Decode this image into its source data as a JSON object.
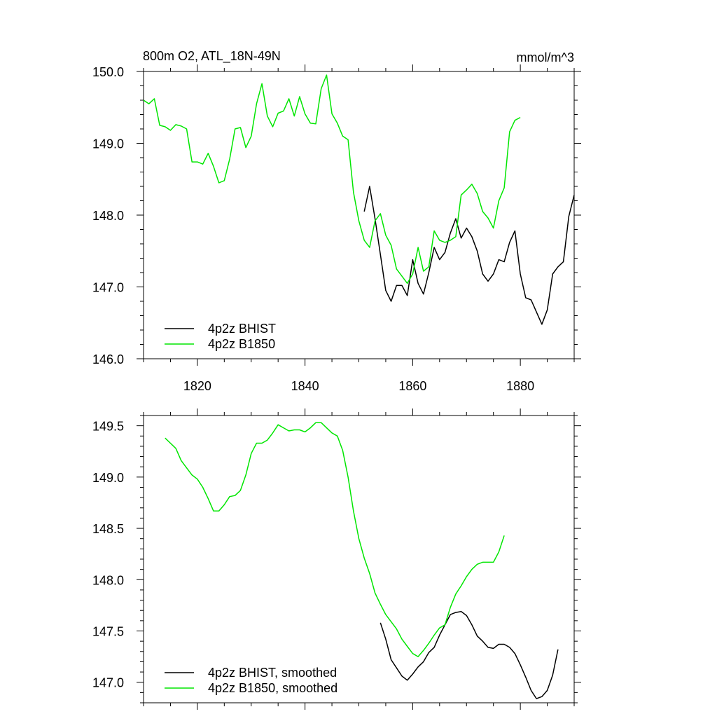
{
  "chart_data": [
    {
      "type": "line",
      "title": "800m O2, ATL_18N-49N",
      "units_label": "mmol/m^3",
      "xlim": [
        1810,
        1890
      ],
      "ylim": [
        146.0,
        150.0
      ],
      "x_ticks": [
        1820,
        1840,
        1860,
        1880
      ],
      "x_tick_labels": [
        "1820",
        "1840",
        "1860",
        "1880"
      ],
      "y_ticks": [
        146.0,
        147.0,
        148.0,
        149.0,
        150.0
      ],
      "y_tick_labels": [
        "146.0",
        "147.0",
        "148.0",
        "149.0",
        "150.0"
      ],
      "legend_position": "bottom-left",
      "series": [
        {
          "name": "4p2z BHIST",
          "color": "#000000",
          "x": [
            1851,
            1852,
            1853,
            1854,
            1855,
            1856,
            1857,
            1858,
            1859,
            1860,
            1861,
            1862,
            1863,
            1864,
            1865,
            1866,
            1867,
            1868,
            1869,
            1870,
            1871,
            1872,
            1873,
            1874,
            1875,
            1876,
            1877,
            1878,
            1879,
            1880,
            1881,
            1882,
            1883,
            1884,
            1885,
            1886,
            1887,
            1888,
            1889,
            1890
          ],
          "y": [
            148.05,
            148.4,
            147.95,
            147.45,
            146.95,
            146.8,
            147.02,
            147.02,
            146.88,
            147.38,
            147.05,
            146.9,
            147.2,
            147.55,
            147.38,
            147.48,
            147.75,
            147.95,
            147.68,
            147.82,
            147.7,
            147.5,
            147.18,
            147.08,
            147.18,
            147.38,
            147.35,
            147.62,
            147.78,
            147.18,
            146.85,
            146.82,
            146.65,
            146.48,
            146.68,
            147.18,
            147.28,
            147.35,
            147.98,
            148.28
          ]
        },
        {
          "name": "4p2z B1850",
          "color": "#00e600",
          "x": [
            1810,
            1811,
            1812,
            1813,
            1814,
            1815,
            1816,
            1817,
            1818,
            1819,
            1820,
            1821,
            1822,
            1823,
            1824,
            1825,
            1826,
            1827,
            1828,
            1829,
            1830,
            1831,
            1832,
            1833,
            1834,
            1835,
            1836,
            1837,
            1838,
            1839,
            1840,
            1841,
            1842,
            1843,
            1844,
            1845,
            1846,
            1847,
            1848,
            1849,
            1850,
            1851,
            1852,
            1853,
            1854,
            1855,
            1856,
            1857,
            1858,
            1859,
            1860,
            1861,
            1862,
            1863,
            1864,
            1865,
            1866,
            1867,
            1868,
            1869,
            1870,
            1871,
            1872,
            1873,
            1874,
            1875,
            1876,
            1877,
            1878,
            1879,
            1880
          ],
          "y": [
            149.6,
            149.55,
            149.62,
            149.25,
            149.23,
            149.18,
            149.26,
            149.24,
            149.2,
            148.74,
            148.74,
            148.71,
            148.86,
            148.68,
            148.45,
            148.48,
            148.78,
            149.2,
            149.22,
            148.94,
            149.1,
            149.55,
            149.83,
            149.38,
            149.23,
            149.42,
            149.45,
            149.62,
            149.38,
            149.65,
            149.41,
            149.28,
            149.27,
            149.76,
            149.95,
            149.41,
            149.28,
            149.1,
            149.05,
            148.32,
            147.92,
            147.65,
            147.55,
            147.92,
            148.02,
            147.72,
            147.58,
            147.25,
            147.15,
            147.05,
            147.18,
            147.55,
            147.22,
            147.28,
            147.78,
            147.65,
            147.62,
            147.65,
            147.7,
            148.28,
            148.35,
            148.43,
            148.3,
            148.05,
            147.96,
            147.82,
            148.2,
            148.38,
            149.16,
            149.32,
            149.36
          ]
        }
      ]
    },
    {
      "type": "line",
      "title": "",
      "xlim": [
        1810,
        1890
      ],
      "ylim": [
        146.8,
        149.6
      ],
      "x_ticks": [
        1820,
        1840,
        1860,
        1880
      ],
      "y_ticks": [
        147.0,
        147.5,
        148.0,
        148.5,
        149.0,
        149.5
      ],
      "y_tick_labels": [
        "147.0",
        "147.5",
        "148.0",
        "148.5",
        "149.0",
        "149.5"
      ],
      "legend_position": "bottom-left",
      "series": [
        {
          "name": "4p2z BHIST, smoothed",
          "color": "#000000",
          "x": [
            1854,
            1855,
            1856,
            1857,
            1858,
            1859,
            1860,
            1861,
            1862,
            1863,
            1864,
            1865,
            1866,
            1867,
            1868,
            1869,
            1870,
            1871,
            1872,
            1873,
            1874,
            1875,
            1876,
            1877,
            1878,
            1879,
            1880,
            1881,
            1882,
            1883,
            1884,
            1885,
            1886,
            1887
          ],
          "y": [
            147.58,
            147.42,
            147.22,
            147.14,
            147.06,
            147.02,
            147.08,
            147.15,
            147.2,
            147.29,
            147.34,
            147.46,
            147.56,
            147.66,
            147.68,
            147.69,
            147.65,
            147.56,
            147.45,
            147.4,
            147.34,
            147.33,
            147.37,
            147.37,
            147.34,
            147.28,
            147.17,
            147.05,
            146.92,
            146.84,
            146.86,
            146.92,
            147.07,
            147.32
          ]
        },
        {
          "name": "4p2z B1850, smoothed",
          "color": "#00e600",
          "x": [
            1814,
            1815,
            1816,
            1817,
            1818,
            1819,
            1820,
            1821,
            1822,
            1823,
            1824,
            1825,
            1826,
            1827,
            1828,
            1829,
            1830,
            1831,
            1832,
            1833,
            1834,
            1835,
            1836,
            1837,
            1838,
            1839,
            1840,
            1841,
            1842,
            1843,
            1844,
            1845,
            1846,
            1847,
            1848,
            1849,
            1850,
            1851,
            1852,
            1853,
            1854,
            1855,
            1856,
            1857,
            1858,
            1859,
            1860,
            1861,
            1862,
            1863,
            1864,
            1865,
            1866,
            1867,
            1868,
            1869,
            1870,
            1871,
            1872,
            1873,
            1874,
            1875,
            1876,
            1877
          ],
          "y": [
            149.38,
            149.33,
            149.28,
            149.16,
            149.09,
            149.02,
            148.98,
            148.9,
            148.79,
            148.67,
            148.67,
            148.73,
            148.81,
            148.82,
            148.87,
            149.02,
            149.23,
            149.33,
            149.33,
            149.36,
            149.43,
            149.51,
            149.48,
            149.45,
            149.46,
            149.46,
            149.44,
            149.48,
            149.53,
            149.53,
            149.48,
            149.43,
            149.4,
            149.26,
            149.0,
            148.67,
            148.4,
            148.21,
            148.06,
            147.87,
            147.76,
            147.66,
            147.59,
            147.52,
            147.42,
            147.35,
            147.28,
            147.25,
            147.31,
            147.38,
            147.46,
            147.53,
            147.56,
            147.73,
            147.86,
            147.94,
            148.03,
            148.1,
            148.15,
            148.17,
            148.17,
            148.17,
            148.27,
            148.43
          ]
        }
      ]
    }
  ]
}
